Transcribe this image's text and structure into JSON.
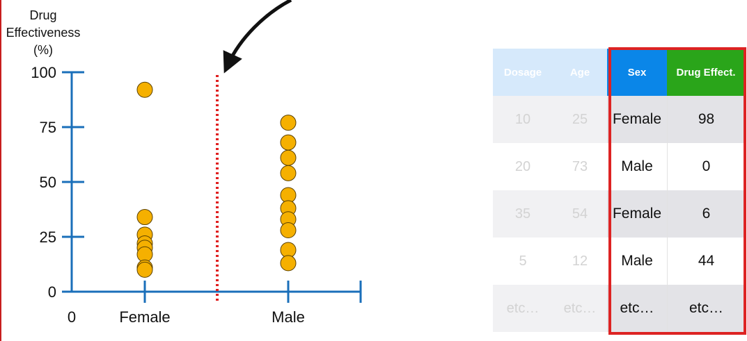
{
  "chart_data": {
    "type": "scatter",
    "ylabel": "Drug\nEffectiveness\n(%)",
    "y_ticks": [
      0,
      25,
      50,
      75,
      100
    ],
    "ylim": [
      0,
      100
    ],
    "x_tick_labels": [
      "0",
      "Female",
      "Male"
    ],
    "series": [
      {
        "category": "Female",
        "values": [
          92,
          34,
          26,
          22,
          20,
          17,
          11,
          10
        ]
      },
      {
        "category": "Male",
        "values": [
          77,
          68,
          61,
          54,
          44,
          38,
          33,
          28,
          19,
          13
        ]
      }
    ],
    "divider_color": "#e02020",
    "point_color": "#f5b000",
    "axis_color": "#1a6fba"
  },
  "table": {
    "headers": [
      "Dosage",
      "Age",
      "Sex",
      "Drug Effect."
    ],
    "rows": [
      [
        "10",
        "25",
        "Female",
        "98"
      ],
      [
        "20",
        "73",
        "Male",
        "0"
      ],
      [
        "35",
        "54",
        "Female",
        "6"
      ],
      [
        "5",
        "12",
        "Male",
        "44"
      ],
      [
        "etc…",
        "etc…",
        "etc…",
        "etc…"
      ]
    ]
  }
}
